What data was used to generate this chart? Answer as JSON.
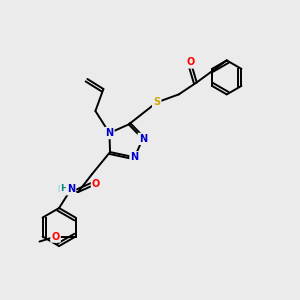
{
  "bg_color": "#ebebeb",
  "atom_colors": {
    "N": "#0000cc",
    "O": "#ff0000",
    "S": "#ccaa00",
    "H": "#008888",
    "C": "#000000"
  },
  "bond_color": "#000000",
  "font_size_atom": 7.0,
  "fig_size": [
    3.0,
    3.0
  ],
  "dpi": 100
}
